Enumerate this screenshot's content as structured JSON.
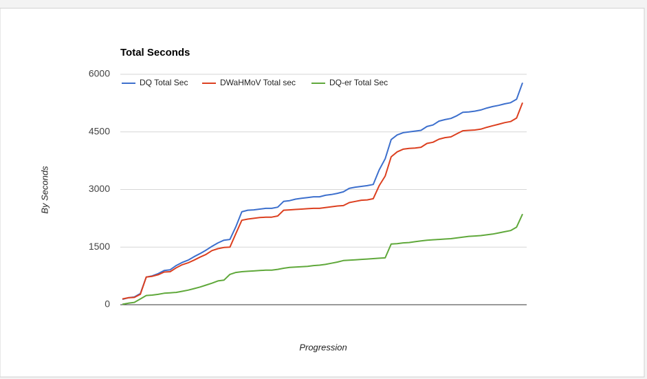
{
  "chart_data": {
    "type": "line",
    "title": "Total Seconds",
    "ylabel": "By Seconds",
    "xlabel": "Progression",
    "ylim": [
      0,
      6000
    ],
    "yticks": [
      0,
      1500,
      3000,
      4500,
      6000
    ],
    "grid": true,
    "legend": "top",
    "series": [
      {
        "name": "DQ Total Sec",
        "color": "#3c6fcd",
        "values": [
          140,
          180,
          200,
          290,
          720,
          750,
          810,
          890,
          910,
          1020,
          1100,
          1160,
          1250,
          1330,
          1420,
          1520,
          1610,
          1680,
          1700,
          2030,
          2420,
          2460,
          2470,
          2490,
          2510,
          2510,
          2540,
          2690,
          2710,
          2750,
          2770,
          2790,
          2810,
          2810,
          2850,
          2870,
          2900,
          2940,
          3030,
          3060,
          3080,
          3100,
          3130,
          3510,
          3800,
          4300,
          4420,
          4480,
          4500,
          4520,
          4540,
          4640,
          4680,
          4780,
          4820,
          4850,
          4920,
          5010,
          5020,
          5040,
          5070,
          5120,
          5160,
          5190,
          5230,
          5260,
          5350,
          5780
        ]
      },
      {
        "name": "DWaHMoV Total sec",
        "color": "#dc3f1f",
        "values": [
          150,
          180,
          190,
          270,
          720,
          740,
          780,
          850,
          860,
          960,
          1040,
          1090,
          1160,
          1240,
          1310,
          1410,
          1460,
          1490,
          1500,
          1850,
          2200,
          2230,
          2250,
          2270,
          2280,
          2280,
          2310,
          2460,
          2470,
          2480,
          2490,
          2500,
          2510,
          2510,
          2530,
          2550,
          2570,
          2580,
          2660,
          2690,
          2720,
          2730,
          2760,
          3100,
          3350,
          3850,
          3980,
          4050,
          4070,
          4080,
          4100,
          4200,
          4230,
          4310,
          4350,
          4370,
          4450,
          4530,
          4540,
          4550,
          4570,
          4620,
          4660,
          4700,
          4740,
          4770,
          4860,
          5260
        ]
      },
      {
        "name": "DQ-er Total Sec",
        "color": "#5fa83a",
        "values": [
          10,
          40,
          60,
          150,
          240,
          250,
          270,
          300,
          310,
          320,
          350,
          380,
          420,
          460,
          510,
          560,
          620,
          640,
          790,
          840,
          860,
          870,
          880,
          890,
          900,
          900,
          920,
          950,
          970,
          980,
          990,
          1000,
          1020,
          1030,
          1050,
          1080,
          1110,
          1150,
          1160,
          1170,
          1180,
          1190,
          1200,
          1210,
          1220,
          1580,
          1590,
          1610,
          1620,
          1640,
          1660,
          1680,
          1690,
          1700,
          1710,
          1720,
          1740,
          1760,
          1780,
          1790,
          1800,
          1820,
          1840,
          1870,
          1900,
          1930,
          2020,
          2360
        ]
      }
    ]
  }
}
